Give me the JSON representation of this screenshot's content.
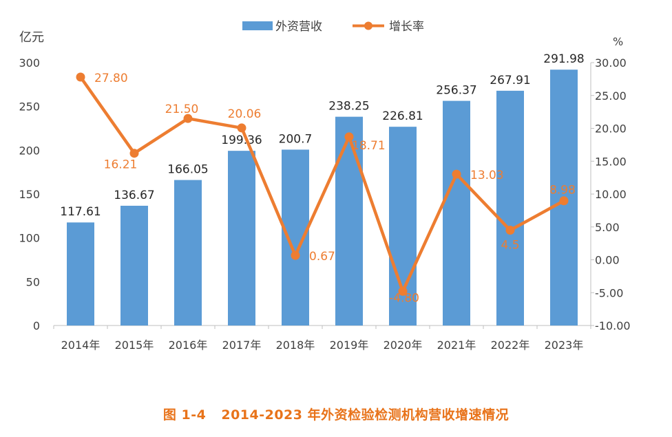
{
  "caption": {
    "figure_no": "图 1-4",
    "title": "2014-2023 年外资检验检测机构营收增速情况"
  },
  "colors": {
    "bar": "#5b9bd5",
    "line": "#ed7d31",
    "axis_text": "#404040",
    "axis_line": "#bfbfbf",
    "caption": "#e8731a"
  },
  "chart_data": {
    "type": "bar+line",
    "categories": [
      "2014年",
      "2015年",
      "2016年",
      "2017年",
      "2018年",
      "2019年",
      "2020年",
      "2021年",
      "2022年",
      "2023年"
    ],
    "series": [
      {
        "name": "外资营收",
        "type": "bar",
        "axis": "left",
        "values": [
          117.61,
          136.67,
          166.05,
          199.36,
          200.7,
          238.25,
          226.81,
          256.37,
          267.91,
          291.98
        ],
        "labels": [
          "117.61",
          "136.67",
          "166.05",
          "199.36",
          "200.7",
          "238.25",
          "226.81",
          "256.37",
          "267.91",
          "291.98"
        ]
      },
      {
        "name": "增长率",
        "type": "line",
        "axis": "right",
        "values": [
          27.8,
          16.21,
          21.5,
          20.06,
          0.67,
          18.71,
          -4.8,
          13.03,
          4.5,
          8.98
        ],
        "labels": [
          "27.80",
          "16.21",
          "21.50",
          "20.06",
          "0.67",
          "18.71",
          "-4.80",
          "13.03",
          "4.5",
          "8.98"
        ]
      }
    ],
    "y_left": {
      "unit": "亿元",
      "min": 0,
      "max": 300,
      "ticks": [
        "0",
        "50",
        "100",
        "150",
        "200",
        "250",
        "300"
      ]
    },
    "y_right": {
      "unit": "%",
      "min": -10,
      "max": 30,
      "ticks": [
        "-10.00",
        "-5.00",
        "0.00",
        "5.00",
        "10.00",
        "15.00",
        "20.00",
        "25.00",
        "30.00"
      ]
    },
    "legend_position": "top-center",
    "grid": false
  }
}
